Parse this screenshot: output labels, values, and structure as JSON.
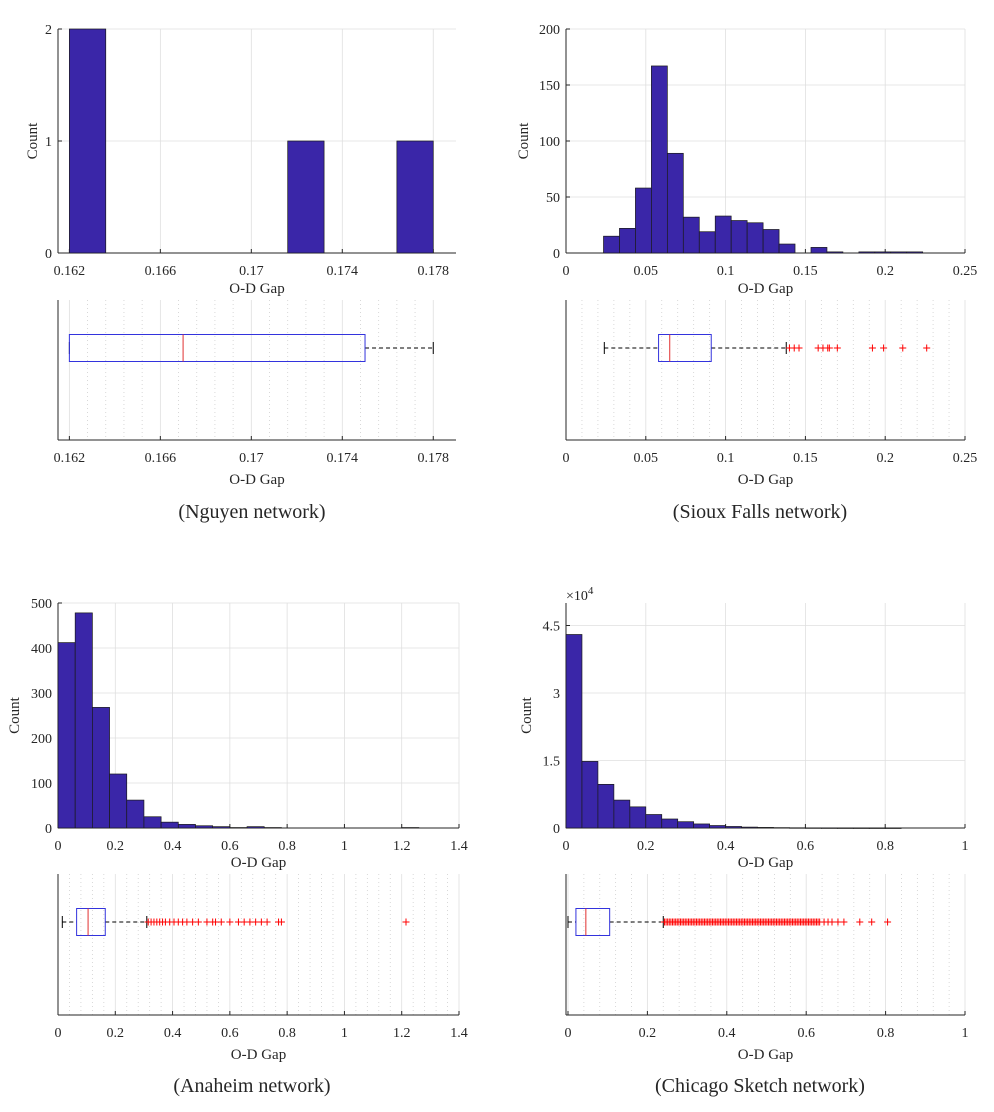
{
  "colors": {
    "bar_fill": "#3a26a8",
    "box_edge": "#3333dd",
    "median": "#e03030",
    "outlier": "#ff0000"
  },
  "chart_data": [
    {
      "type": "bar",
      "id": "nguyen-hist",
      "panel": "Nguyen network",
      "xlabel": "O-D Gap",
      "ylabel": "Count",
      "xlim": [
        0.1615,
        0.179
      ],
      "ylim": [
        0,
        2
      ],
      "xticks": [
        0.162,
        0.166,
        0.17,
        0.174,
        0.178
      ],
      "xtick_labels": [
        "0.162",
        "0.166",
        "0.17",
        "0.174",
        "0.178"
      ],
      "yticks": [
        0,
        1,
        2
      ],
      "ytick_labels": [
        "0",
        "1",
        "2"
      ],
      "bin_edges": [
        0.162,
        0.1636,
        0.1652,
        0.1668,
        0.1684,
        0.17,
        0.1716,
        0.1732,
        0.1748,
        0.1764,
        0.178
      ],
      "counts": [
        2,
        0,
        0,
        0,
        0,
        0,
        1,
        0,
        0,
        1
      ],
      "grid": true
    },
    {
      "type": "box",
      "id": "nguyen-box",
      "panel": "Nguyen network",
      "xlabel": "O-D Gap",
      "xlim": [
        0.1615,
        0.179
      ],
      "xticks": [
        0.162,
        0.166,
        0.17,
        0.174,
        0.178
      ],
      "xtick_labels": [
        "0.162",
        "0.166",
        "0.17",
        "0.174",
        "0.178"
      ],
      "whisker_low": 0.162,
      "q1": 0.162,
      "median": 0.167,
      "q3": 0.175,
      "whisker_high": 0.178,
      "outliers": [],
      "grid": true
    },
    {
      "type": "bar",
      "id": "sioux-hist",
      "panel": "Sioux Falls network",
      "xlabel": "O-D Gap",
      "ylabel": "Count",
      "xlim": [
        0,
        0.25
      ],
      "ylim": [
        0,
        200
      ],
      "xticks": [
        0,
        0.05,
        0.1,
        0.15,
        0.2,
        0.25
      ],
      "xtick_labels": [
        "0",
        "0.05",
        "0.1",
        "0.15",
        "0.2",
        "0.25"
      ],
      "yticks": [
        0,
        50,
        100,
        150,
        200
      ],
      "ytick_labels": [
        "0",
        "50",
        "100",
        "150",
        "200"
      ],
      "bin_edges": [
        0.0235,
        0.0335,
        0.0435,
        0.0535,
        0.0635,
        0.0735,
        0.0835,
        0.0935,
        0.1035,
        0.1135,
        0.1235,
        0.1335,
        0.1435,
        0.1535,
        0.1635,
        0.1735,
        0.1835,
        0.1935,
        0.2035,
        0.2135,
        0.2235
      ],
      "counts": [
        15,
        22,
        58,
        167,
        89,
        32,
        19,
        33,
        29,
        27,
        21,
        8,
        0,
        5,
        1,
        0,
        1,
        1,
        1,
        1
      ],
      "grid": true
    },
    {
      "type": "box",
      "id": "sioux-box",
      "panel": "Sioux Falls network",
      "xlabel": "O-D Gap",
      "xlim": [
        0,
        0.25
      ],
      "xticks": [
        0,
        0.05,
        0.1,
        0.15,
        0.2,
        0.25
      ],
      "xtick_labels": [
        "0",
        "0.05",
        "0.1",
        "0.15",
        "0.2",
        "0.25"
      ],
      "whisker_low": 0.024,
      "q1": 0.058,
      "median": 0.065,
      "q3": 0.091,
      "whisker_high": 0.138,
      "outliers": [
        0.14,
        0.143,
        0.146,
        0.158,
        0.161,
        0.164,
        0.165,
        0.17,
        0.192,
        0.199,
        0.211,
        0.226
      ],
      "grid": true
    },
    {
      "type": "bar",
      "id": "anaheim-hist",
      "panel": "Anaheim network",
      "xlabel": "O-D Gap",
      "ylabel": "Count",
      "xlim": [
        0,
        1.4
      ],
      "ylim": [
        0,
        500
      ],
      "xticks": [
        0,
        0.2,
        0.4,
        0.6,
        0.8,
        1,
        1.2,
        1.4
      ],
      "xtick_labels": [
        "0",
        "0.2",
        "0.4",
        "0.6",
        "0.8",
        "1",
        "1.2",
        "1.4"
      ],
      "yticks": [
        0,
        100,
        200,
        300,
        400,
        500
      ],
      "ytick_labels": [
        "0",
        "100",
        "200",
        "300",
        "400",
        "500"
      ],
      "bin_edges": [
        0,
        0.06,
        0.12,
        0.18,
        0.24,
        0.3,
        0.36,
        0.42,
        0.48,
        0.54,
        0.6,
        0.66,
        0.72,
        0.78,
        0.84,
        0.9,
        0.96,
        1.02,
        1.08,
        1.14,
        1.2,
        1.26
      ],
      "counts": [
        412,
        478,
        268,
        120,
        62,
        25,
        13,
        8,
        5,
        3,
        1,
        3,
        1,
        0,
        0,
        0,
        0,
        0,
        0,
        0,
        1
      ],
      "grid": true
    },
    {
      "type": "box",
      "id": "anaheim-box",
      "panel": "Anaheim network",
      "xlabel": "O-D Gap",
      "xlim": [
        0,
        1.4
      ],
      "xticks": [
        0,
        0.2,
        0.4,
        0.6,
        0.8,
        1,
        1.2,
        1.4
      ],
      "xtick_labels": [
        "0",
        "0.2",
        "0.4",
        "0.6",
        "0.8",
        "1",
        "1.2",
        "1.4"
      ],
      "whisker_low": 0.015,
      "q1": 0.065,
      "median": 0.105,
      "q3": 0.165,
      "whisker_high": 0.31,
      "outliers": [
        0.315,
        0.325,
        0.335,
        0.345,
        0.355,
        0.365,
        0.375,
        0.39,
        0.405,
        0.42,
        0.435,
        0.45,
        0.47,
        0.49,
        0.52,
        0.54,
        0.55,
        0.57,
        0.6,
        0.63,
        0.65,
        0.67,
        0.69,
        0.71,
        0.73,
        0.77,
        0.78,
        1.215
      ],
      "grid": true
    },
    {
      "type": "bar",
      "id": "chicago-hist",
      "panel": "Chicago Sketch network",
      "xlabel": "O-D Gap",
      "ylabel": "Count",
      "y_exponent_base": "×10",
      "y_exponent_power": "4",
      "xlim": [
        0,
        1
      ],
      "ylim": [
        0,
        50000
      ],
      "xticks": [
        0,
        0.2,
        0.4,
        0.6,
        0.8,
        1
      ],
      "xtick_labels": [
        "0",
        "0.2",
        "0.4",
        "0.6",
        "0.8",
        "1"
      ],
      "yticks": [
        0,
        15000,
        30000,
        45000
      ],
      "ytick_labels": [
        "0",
        "1.5",
        "3",
        "4.5"
      ],
      "bin_edges": [
        0,
        0.04,
        0.08,
        0.12,
        0.16,
        0.2,
        0.24,
        0.28,
        0.32,
        0.36,
        0.4,
        0.44,
        0.48,
        0.52,
        0.56,
        0.6,
        0.64,
        0.68,
        0.72,
        0.76,
        0.8,
        0.84
      ],
      "counts": [
        43000,
        14800,
        9700,
        6200,
        4700,
        3000,
        2000,
        1400,
        900,
        550,
        340,
        200,
        130,
        80,
        50,
        30,
        20,
        12,
        8,
        5,
        3
      ],
      "grid": true
    },
    {
      "type": "box",
      "id": "chicago-box",
      "panel": "Chicago Sketch network",
      "xlabel": "O-D Gap",
      "xlim": [
        -0.005,
        1
      ],
      "xticks": [
        0,
        0.2,
        0.4,
        0.6,
        0.8,
        1
      ],
      "xtick_labels": [
        "0",
        "0.2",
        "0.4",
        "0.6",
        "0.8",
        "1"
      ],
      "whisker_low": 0.0,
      "q1": 0.02,
      "median": 0.045,
      "q3": 0.105,
      "whisker_high": 0.24,
      "outlier_band": [
        0.243,
        0.635
      ],
      "outliers": [
        0.645,
        0.655,
        0.665,
        0.68,
        0.695,
        0.735,
        0.765,
        0.805
      ],
      "grid": true
    }
  ],
  "captions": {
    "nguyen": "(Nguyen network)",
    "sioux": "(Sioux Falls network)",
    "anaheim": "(Anaheim network)",
    "chicago": "(Chicago Sketch network)"
  }
}
